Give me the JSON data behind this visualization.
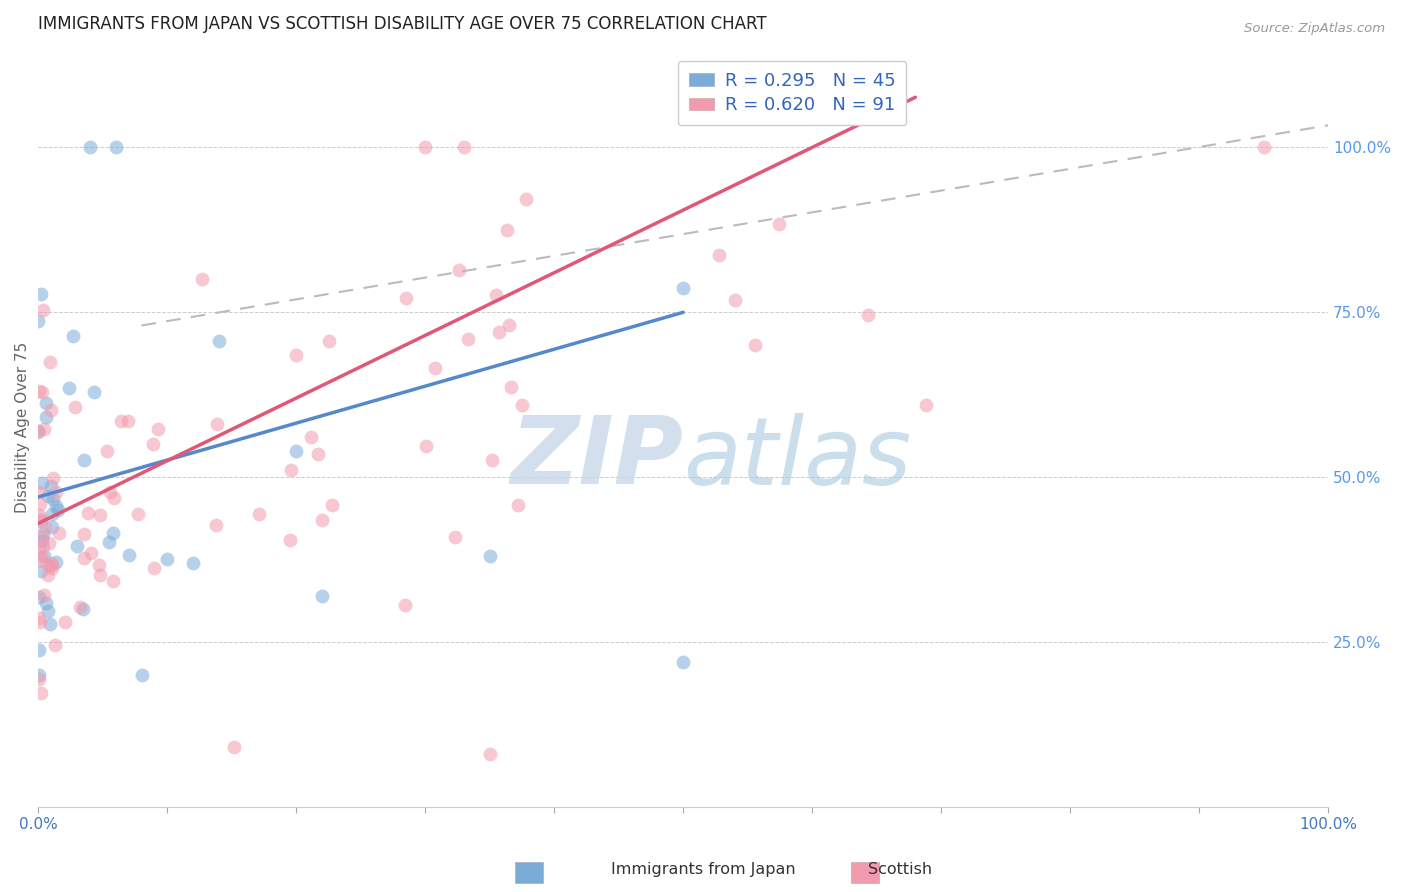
{
  "title": "IMMIGRANTS FROM JAPAN VS SCOTTISH DISABILITY AGE OVER 75 CORRELATION CHART",
  "source": "Source: ZipAtlas.com",
  "ylabel": "Disability Age Over 75",
  "xlim": [
    0.0,
    1.0
  ],
  "ylim": [
    0.0,
    1.15
  ],
  "legend_R1": "R = 0.295",
  "legend_N1": "N = 45",
  "legend_R2": "R = 0.620",
  "legend_N2": "N = 91",
  "color_japan": "#7BACD8",
  "color_scottish": "#F29AAE",
  "color_japan_line": "#5588CC",
  "color_scottish_line": "#E05878",
  "color_dashed": "#BBBBBB",
  "watermark_color": "#C8DFF0",
  "y_tick_vals": [
    0.25,
    0.5,
    0.75,
    1.0
  ],
  "y_tick_labels": [
    "25.0%",
    "50.0%",
    "75.0%",
    "100.0%"
  ],
  "right_tick_color": "#5599EE",
  "title_fontsize": 12,
  "marker_size": 100,
  "marker_alpha": 0.55,
  "line_width": 2.5
}
